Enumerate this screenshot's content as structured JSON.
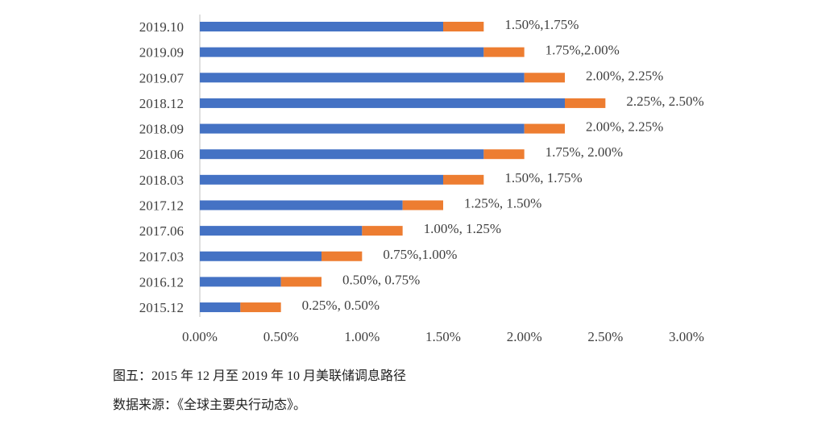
{
  "chart_data": {
    "type": "bar",
    "orientation": "horizontal",
    "stacked": true,
    "categories": [
      "2019.10",
      "2019.09",
      "2019.07",
      "2018.12",
      "2018.09",
      "2018.06",
      "2018.03",
      "2017.12",
      "2017.06",
      "2017.03",
      "2016.12",
      "2015.12"
    ],
    "series": [
      {
        "values": [
          1.5,
          1.75,
          2.0,
          2.25,
          2.0,
          1.75,
          1.5,
          1.25,
          1.0,
          0.75,
          0.5,
          0.25
        ],
        "color": "#4472C4"
      },
      {
        "values": [
          0.25,
          0.25,
          0.25,
          0.25,
          0.25,
          0.25,
          0.25,
          0.25,
          0.25,
          0.25,
          0.25,
          0.25
        ],
        "color": "#ED7D31"
      }
    ],
    "data_labels": [
      "1.50%,1.75%",
      "1.75%,2.00%",
      "2.00%, 2.25%",
      "2.25%, 2.50%",
      "2.00%, 2.25%",
      "1.75%, 2.00%",
      "1.50%, 1.75%",
      "1.25%, 1.50%",
      "1.00%, 1.25%",
      "0.75%,1.00%",
      "0.50%, 0.75%",
      "0.25%, 0.50%"
    ],
    "xlim": [
      0,
      3.0
    ],
    "x_ticks": [
      "0.00%",
      "0.50%",
      "1.00%",
      "1.50%",
      "2.00%",
      "2.50%",
      "3.00%"
    ],
    "grid": false,
    "legend": "none"
  },
  "caption": {
    "figure": "图五：2015 年 12 月至 2019 年 10 月美联储调息路径",
    "source": "数据来源：《全球主要央行动态》。"
  }
}
